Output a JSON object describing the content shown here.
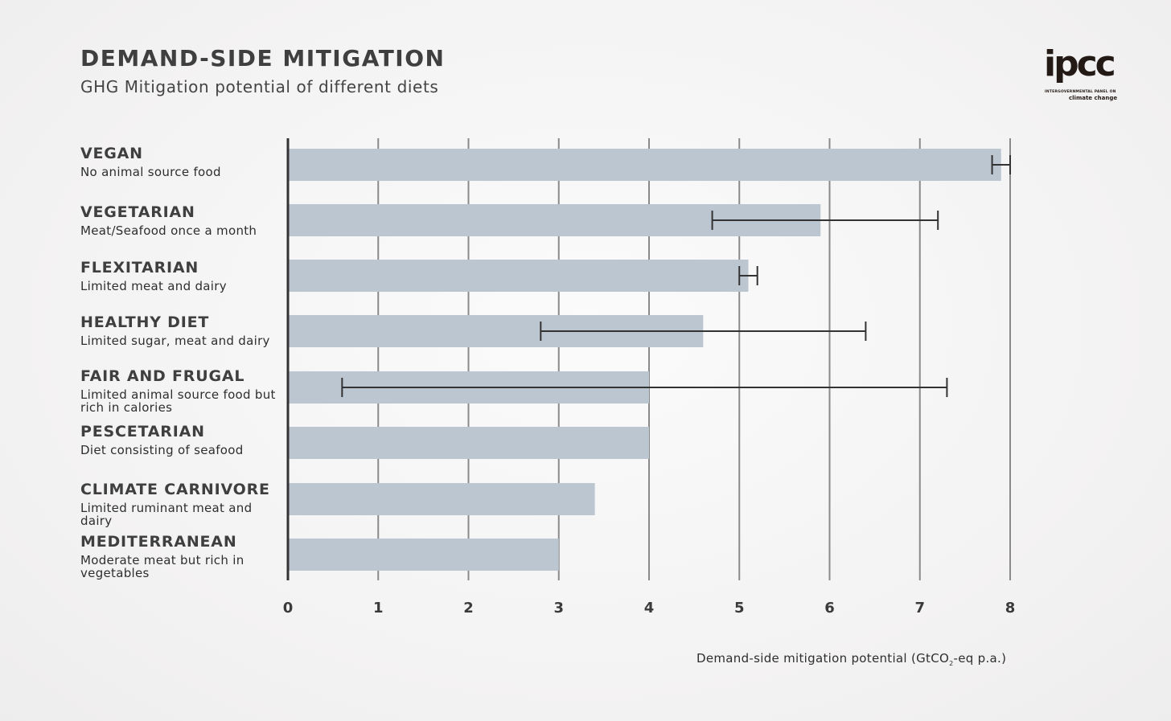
{
  "header": {
    "title": "DEMAND-SIDE MITIGATION",
    "subtitle": "GHG Mitigation potential of different diets"
  },
  "logo": {
    "word": "ipcc",
    "line1": "INTERGOVERNMENTAL PANEL ON",
    "line2": "climate change"
  },
  "colors": {
    "bar": "#bcc6d0",
    "grid": "#8a8a8a",
    "axis": "#333333",
    "error_bar": "#333333"
  },
  "chart_data": {
    "type": "bar",
    "orientation": "horizontal",
    "title": "DEMAND-SIDE MITIGATION",
    "subtitle": "GHG Mitigation potential of different diets",
    "xlabel_main": "Demand-side mitigation potential (GtCO",
    "xlabel_sub": "2",
    "xlabel_tail": "-eq p.a.)",
    "xlim": [
      0,
      8
    ],
    "xticks": [
      "0",
      "1",
      "2",
      "3",
      "4",
      "5",
      "6",
      "7",
      "8"
    ],
    "grid": "vertical",
    "categories": [
      {
        "name": "VEGAN",
        "description": "No animal source food",
        "value": 7.9,
        "error": [
          7.8,
          8.0
        ]
      },
      {
        "name": "VEGETARIAN",
        "description": "Meat/Seafood once a month",
        "value": 5.9,
        "error": [
          4.7,
          7.2
        ]
      },
      {
        "name": "FLEXITARIAN",
        "description": "Limited meat and dairy",
        "value": 5.1,
        "error": [
          5.0,
          5.2
        ]
      },
      {
        "name": "HEALTHY DIET",
        "description": "Limited sugar, meat and dairy",
        "value": 4.6,
        "error": [
          2.8,
          6.4
        ]
      },
      {
        "name": "FAIR AND FRUGAL",
        "description": "Limited animal source food but rich in calories",
        "value": 4.0,
        "error": [
          0.6,
          7.3
        ]
      },
      {
        "name": "PESCETARIAN",
        "description": "Diet consisting of seafood",
        "value": 4.0,
        "error": null
      },
      {
        "name": "CLIMATE CARNIVORE",
        "description": "Limited ruminant meat and dairy",
        "value": 3.4,
        "error": null
      },
      {
        "name": "MEDITERRANEAN",
        "description": "Moderate meat but rich in vegetables",
        "value": 3.0,
        "error": null
      }
    ]
  }
}
